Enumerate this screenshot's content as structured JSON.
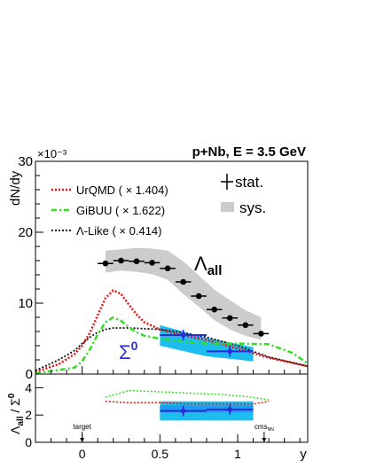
{
  "colors": {
    "lambda_band": "#cccccc",
    "sigma_band": "#1ebdf0",
    "sigma_marker": "#2b2bdb",
    "urqmd": "#ee1111",
    "gibuu": "#33dd22",
    "alike": "#111111",
    "ratio_band_cyan": "#1ebdf0"
  },
  "chart_data": [
    {
      "type": "scatter",
      "title": "p+Nb, E = 3.5 GeV",
      "xlabel": "",
      "ylabel": "dN/dy",
      "y_exponent": "×10⁻³",
      "xlim": [
        -0.3,
        1.45
      ],
      "ylim": [
        0,
        30
      ],
      "x_ticks": [
        0,
        0.5,
        1
      ],
      "y_ticks": [
        0,
        10,
        20,
        30
      ],
      "y_tick_labels": [
        "0",
        "10",
        "20",
        "30"
      ],
      "legend_position": "top-left",
      "legend": [
        {
          "series": "urqmd",
          "label": "UrQMD ( × 1.404)",
          "style": "dotted"
        },
        {
          "series": "gibuu",
          "label": "GiBUU ( × 1.622)",
          "style": "dash-dot"
        },
        {
          "series": "alike",
          "label": "Λ-Like ( × 0.414)",
          "style": "dotted"
        }
      ],
      "error_legend": [
        {
          "label": "stat."
        },
        {
          "label": "sys."
        }
      ],
      "annotations": {
        "lambda_label": "Λ",
        "lambda_sub": "all",
        "sigma_label": "Σ",
        "sigma_sup": "0"
      },
      "series": [
        {
          "id": "lambda_all",
          "x": [
            0.15,
            0.25,
            0.35,
            0.45,
            0.55,
            0.65,
            0.75,
            0.85,
            0.95,
            1.05,
            1.15
          ],
          "y": [
            15.6,
            16.0,
            15.9,
            15.7,
            14.9,
            13.0,
            11.0,
            9.1,
            7.9,
            6.9,
            5.7
          ],
          "xerr": 0.05,
          "sys_upper": [
            17.4,
            17.6,
            17.8,
            17.7,
            17.4,
            15.9,
            13.9,
            11.9,
            10.4,
            9.0,
            8.0
          ],
          "sys_lower": [
            14.3,
            14.6,
            14.4,
            14.1,
            13.3,
            11.3,
            9.5,
            7.6,
            6.3,
            5.4,
            4.8
          ]
        },
        {
          "id": "sigma0",
          "x": [
            0.65,
            0.95
          ],
          "y": [
            5.5,
            3.2
          ],
          "xerr": 0.15,
          "sys_band_x": [
            0.5,
            1.1
          ],
          "sys_upper": [
            6.9,
            5.1,
            3.8
          ],
          "sys_lower": [
            4.0,
            2.5,
            1.8
          ]
        },
        {
          "id": "urqmd",
          "x": [
            -0.3,
            -0.15,
            -0.05,
            0.0,
            0.05,
            0.1,
            0.15,
            0.2,
            0.25,
            0.3,
            0.35,
            0.4,
            0.5,
            0.6,
            0.8,
            1.0,
            1.2,
            1.45
          ],
          "y": [
            0.3,
            1.4,
            2.8,
            4.0,
            5.8,
            8.3,
            10.7,
            11.8,
            11.3,
            9.8,
            8.4,
            7.3,
            6.3,
            5.7,
            4.8,
            3.6,
            2.3,
            1.1
          ]
        },
        {
          "id": "gibuu",
          "x": [
            -0.3,
            -0.05,
            0.0,
            0.05,
            0.1,
            0.15,
            0.2,
            0.25,
            0.3,
            0.35,
            0.4,
            0.5,
            0.6,
            0.8,
            1.0,
            1.2,
            1.35,
            1.45
          ],
          "y": [
            0.1,
            0.9,
            1.8,
            3.5,
            5.6,
            7.3,
            8.0,
            7.5,
            6.6,
            5.9,
            5.4,
            5.0,
            4.7,
            4.3,
            4.3,
            4.2,
            3.0,
            1.5
          ]
        },
        {
          "id": "alike",
          "x": [
            -0.3,
            -0.15,
            -0.05,
            0.0,
            0.05,
            0.1,
            0.15,
            0.2,
            0.3,
            0.4,
            0.5,
            0.6,
            0.8,
            1.0,
            1.2,
            1.45
          ],
          "y": [
            0.5,
            2.0,
            3.3,
            4.3,
            5.2,
            5.9,
            6.3,
            6.5,
            6.5,
            6.4,
            6.3,
            6.0,
            5.2,
            4.0,
            2.4,
            1.1
          ]
        }
      ]
    },
    {
      "type": "scatter",
      "ylabel": "Λall / Σ0",
      "ylabel_parts": {
        "main": "Λ",
        "sub": "all",
        "slash": " / Σ",
        "sup": "0"
      },
      "xlabel": "y",
      "xlim": [
        -0.3,
        1.45
      ],
      "ylim": [
        0,
        5
      ],
      "x_ticks": [
        0,
        0.5,
        1
      ],
      "x_tick_labels": [
        "0",
        "0.5",
        "1"
      ],
      "y_ticks": [
        0,
        2,
        4
      ],
      "y_tick_labels": [
        "0",
        "2",
        "4"
      ],
      "markers": [
        {
          "label": "target",
          "x": 0.0
        },
        {
          "label": "cms",
          "sub": "NN",
          "x": 1.17
        }
      ],
      "series": [
        {
          "id": "ratio",
          "x": [
            0.65,
            0.95
          ],
          "y": [
            2.3,
            2.4
          ],
          "xerr": 0.15,
          "sys_band_x": [
            0.5,
            1.1
          ],
          "sys_upper": 3.0,
          "sys_lower": 1.6,
          "inner_band": [
            2.2,
            2.7
          ]
        },
        {
          "id": "ratio_urqmd",
          "x": [
            0.15,
            0.3,
            0.5,
            0.7,
            0.9,
            1.1,
            1.2
          ],
          "y": [
            3.0,
            2.9,
            2.9,
            2.8,
            2.8,
            2.8,
            3.0
          ]
        },
        {
          "id": "ratio_gibuu",
          "x": [
            0.15,
            0.3,
            0.5,
            0.7,
            0.9,
            1.1,
            1.2
          ],
          "y": [
            3.3,
            3.8,
            3.7,
            3.6,
            3.5,
            3.3,
            3.1
          ]
        }
      ]
    }
  ]
}
